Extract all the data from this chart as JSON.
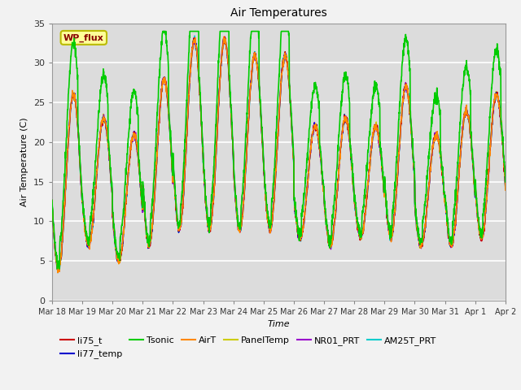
{
  "title": "Air Temperatures",
  "xlabel": "Time",
  "ylabel": "Air Temperature (C)",
  "ylim": [
    0,
    35
  ],
  "x_tick_labels": [
    "Mar 18",
    "Mar 19",
    "Mar 20",
    "Mar 21",
    "Mar 22",
    "Mar 23",
    "Mar 24",
    "Mar 25",
    "Mar 26",
    "Mar 27",
    "Mar 28",
    "Mar 29",
    "Mar 30",
    "Mar 31",
    "Apr 1",
    "Apr 2"
  ],
  "series": {
    "li75_t": {
      "color": "#cc0000",
      "lw": 1.0,
      "zorder": 5
    },
    "li77_temp": {
      "color": "#0000cc",
      "lw": 1.0,
      "zorder": 5
    },
    "Tsonic": {
      "color": "#00cc00",
      "lw": 1.2,
      "zorder": 6
    },
    "AirT": {
      "color": "#ff8800",
      "lw": 1.0,
      "zorder": 5
    },
    "PanelTemp": {
      "color": "#cccc00",
      "lw": 1.0,
      "zorder": 4
    },
    "NR01_PRT": {
      "color": "#9900cc",
      "lw": 1.0,
      "zorder": 5
    },
    "AM25T_PRT": {
      "color": "#00cccc",
      "lw": 1.2,
      "zorder": 4
    }
  },
  "fig_bg": "#f2f2f2",
  "plot_bg": "#dcdcdc",
  "grid_color": "#ffffff",
  "annotation_text": "WP_flux",
  "annotation_color": "#880000",
  "annotation_bg": "#ffff99",
  "annotation_border": "#bbbb00",
  "day_amps": [
    22,
    16,
    16,
    21,
    24,
    24,
    22,
    22,
    14,
    16,
    14,
    19,
    14,
    17,
    18,
    17
  ],
  "day_mins": [
    4,
    7,
    5,
    7,
    9,
    9,
    9,
    9,
    8,
    7,
    8,
    8,
    7,
    7,
    8,
    8
  ]
}
